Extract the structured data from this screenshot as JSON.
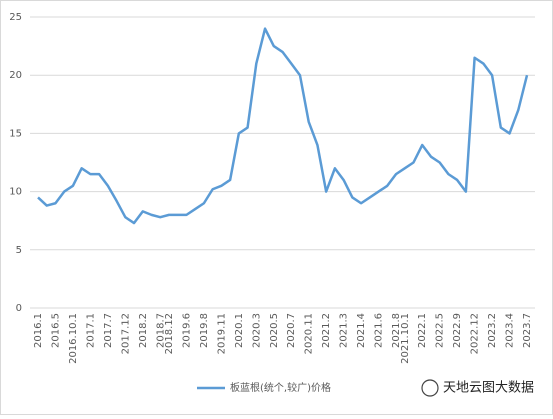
{
  "chart_data": {
    "type": "line",
    "categories": [
      "2016.1",
      null,
      "2016.5",
      null,
      "2016.10.1",
      null,
      "2017.1",
      null,
      "2017.7",
      null,
      "2017.12",
      null,
      "2018.2",
      null,
      "2018.7",
      "2018.12",
      null,
      "2019.6",
      null,
      "2019.8",
      null,
      "2019.11",
      null,
      "2020.1",
      null,
      "2020.3",
      null,
      "2020.5",
      null,
      "2020.7",
      null,
      "2020.11",
      null,
      "2021.2",
      null,
      "2021.3",
      null,
      "2021.4",
      null,
      "2021.6",
      null,
      "2021.8",
      "2021.10.1",
      null,
      "2022.1",
      null,
      "2022.5",
      null,
      "2022.9",
      null,
      "2022.12",
      null,
      "2023.2",
      null,
      "2023.4",
      null,
      "2023.7"
    ],
    "series": [
      {
        "name": "板蓝根(统个,较广)价格",
        "color": "#5b9bd5",
        "values": [
          9.5,
          8.8,
          9.0,
          10.0,
          10.5,
          12.0,
          11.5,
          11.5,
          10.5,
          9.2,
          7.8,
          7.3,
          8.3,
          8.0,
          7.8,
          8.0,
          8.0,
          8.0,
          8.5,
          9.0,
          10.2,
          10.5,
          11.0,
          15.0,
          15.5,
          21.0,
          24.0,
          22.5,
          22.0,
          21.0,
          20.0,
          16.0,
          14.0,
          10.0,
          12.0,
          11.0,
          9.5,
          9.0,
          9.5,
          10.0,
          10.5,
          11.5,
          12.0,
          12.5,
          14.0,
          13.0,
          12.5,
          11.5,
          11.0,
          10.0,
          21.5,
          21.0,
          20.0,
          15.5,
          15.0,
          17.0,
          20.0
        ]
      }
    ],
    "ylim": [
      0,
      25
    ],
    "yticks": [
      0,
      5,
      10,
      15,
      20,
      25
    ],
    "grid": true,
    "legend": "bottom",
    "watermark": "天地云图大数据"
  }
}
